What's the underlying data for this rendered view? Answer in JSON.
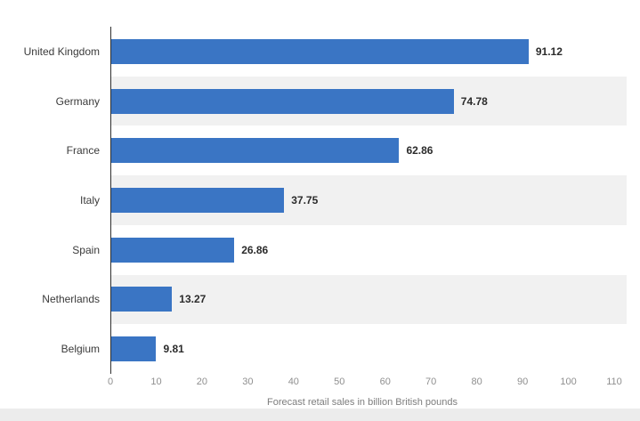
{
  "chart_data": {
    "type": "bar",
    "orientation": "horizontal",
    "title": "",
    "categories": [
      "United Kingdom",
      "Germany",
      "France",
      "Italy",
      "Spain",
      "Netherlands",
      "Belgium"
    ],
    "values": [
      91.12,
      74.78,
      62.86,
      37.75,
      26.86,
      13.27,
      9.81
    ],
    "value_labels": [
      "91.12",
      "74.78",
      "62.86",
      "37.75",
      "26.86",
      "13.27",
      "9.81"
    ],
    "xlabel": "Forecast retail sales in billion British pounds",
    "ylabel": "",
    "xlim": [
      0,
      110
    ],
    "xticks": [
      "0",
      "10",
      "20",
      "30",
      "40",
      "50",
      "60",
      "70",
      "80",
      "90",
      "100",
      "110"
    ],
    "grid": false,
    "legend_position": "none",
    "colors": {
      "bar": "#3a75c4",
      "stripe": "#f1f1f1",
      "axis_line": "#2f2f2f",
      "value_text": "#2b2b2b",
      "category_text": "#3a3a3a",
      "tick_text": "#8f8f8f",
      "axis_title_text": "#7d7d7d",
      "bottom_strip": "#ececec",
      "background": "#ffffff"
    }
  }
}
